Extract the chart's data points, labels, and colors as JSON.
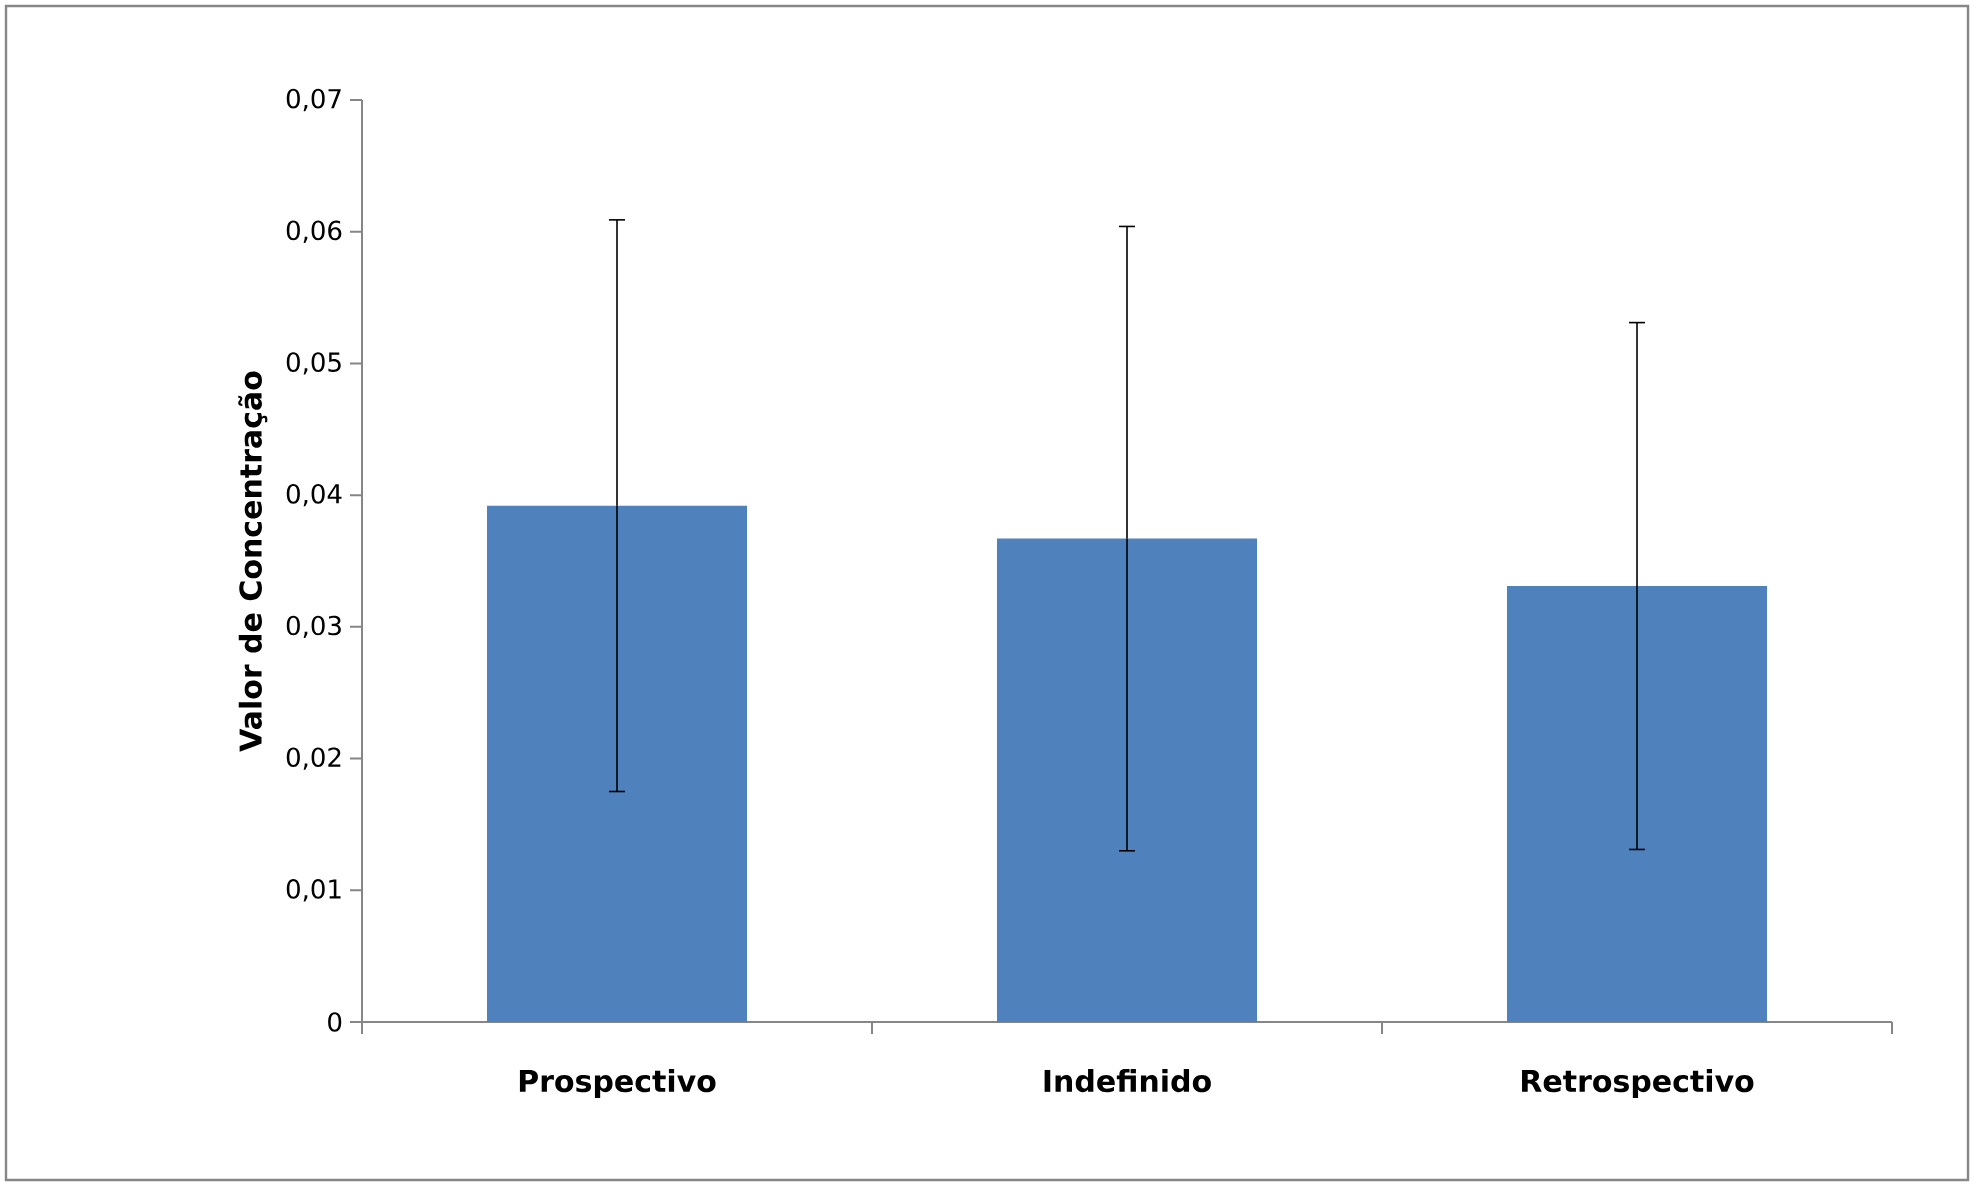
{
  "chart_data": {
    "type": "bar",
    "ylabel": "Valor de Concentração",
    "categories": [
      "Prospectivo",
      "Indefinido",
      "Retrospectivo"
    ],
    "values": [
      0.0392,
      0.0367,
      0.0331
    ],
    "errors": [
      0.0217,
      0.0237,
      0.02
    ],
    "color": "#4f81bd",
    "ylim": [
      0,
      0.07
    ],
    "yticks": [
      0,
      {
        "value": 0.01,
        "label": "0,01"
      },
      {
        "value": 0.02,
        "label": "0,02"
      },
      {
        "value": 0.03,
        "label": "0,03"
      },
      {
        "value": 0.04,
        "label": "0,04"
      },
      {
        "value": 0.05,
        "label": "0,05"
      },
      {
        "value": 0.06,
        "label": "0,06"
      },
      {
        "value": 0.07,
        "label": "0,07"
      }
    ]
  }
}
